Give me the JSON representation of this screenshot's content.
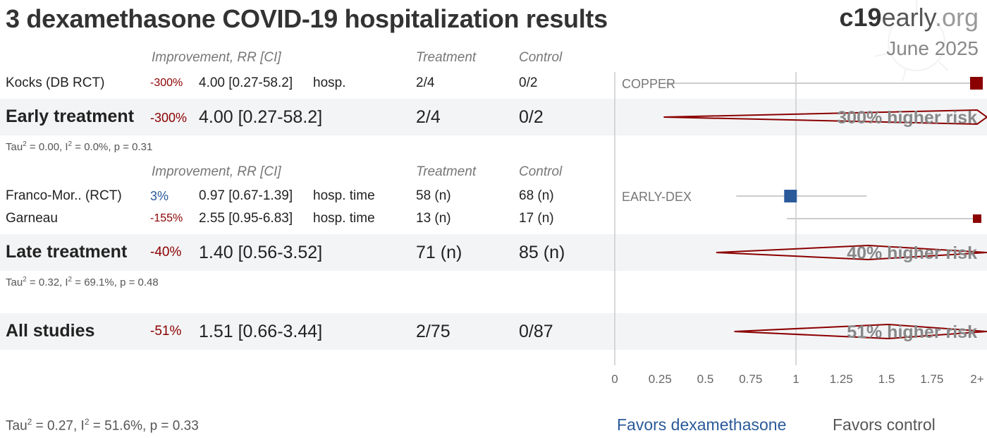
{
  "title": "3 dexamethasone COVID-19 hospitalization results",
  "brand": {
    "strong": "c19",
    "mid": "early",
    "suffix": ".org"
  },
  "date": "June 2025",
  "headers": {
    "improvement": "Improvement, RR [CI]",
    "treatment": "Treatment",
    "control": "Control"
  },
  "studies": [
    {
      "name": "Kocks (DB RCT)",
      "improvement": "-300%",
      "rr_text": "4.00 [0.27-58.2]",
      "outcome": "hosp.",
      "treatment": "2/4",
      "control": "0/2",
      "trial": "COPPER"
    },
    {
      "name": "Franco-Mor.. (RCT)",
      "improvement": "3%",
      "rr_text": "0.97 [0.67-1.39]",
      "outcome": "hosp. time",
      "treatment": "58 (n)",
      "control": "68 (n)",
      "trial": "EARLY-DEX"
    },
    {
      "name": "Garneau",
      "improvement": "-155%",
      "rr_text": "2.55 [0.95-6.83]",
      "outcome": "hosp. time",
      "treatment": "13 (n)",
      "control": "17 (n)",
      "trial": ""
    }
  ],
  "groups": [
    {
      "name": "Early treatment",
      "improvement": "-300%",
      "rr_text": "4.00 [0.27-58.2]",
      "treatment": "2/4",
      "control": "0/2",
      "effect_label": "300% higher risk",
      "stats": "= 0.00, I",
      "stats_tail": "= 0.0%, p = 0.31"
    },
    {
      "name": "Late treatment",
      "improvement": "-40%",
      "rr_text": "1.40 [0.56-3.52]",
      "treatment": "71 (n)",
      "control": "85 (n)",
      "effect_label": "40% higher risk",
      "stats": "= 0.32, I",
      "stats_tail": "= 69.1%, p = 0.48"
    },
    {
      "name": "All studies",
      "improvement": "-51%",
      "rr_text": "1.51 [0.66-3.44]",
      "treatment": "2/75",
      "control": "0/87",
      "effect_label": "51% higher risk"
    }
  ],
  "footer": {
    "stats": "= 0.27, I",
    "stats_tail": "= 51.6%, p = 0.33"
  },
  "tau_label": "Tau",
  "sq": "2",
  "i_label": "I",
  "axis_labels": [
    "0",
    "0.25",
    "0.5",
    "0.75",
    "1",
    "1.25",
    "1.5",
    "1.75",
    "2+"
  ],
  "favors": {
    "left": "Favors dexamethasone",
    "right": "Favors control"
  },
  "chart_data": {
    "type": "forest",
    "x_axis": {
      "min": 0,
      "max": 2,
      "ticks": [
        0,
        0.25,
        0.5,
        0.75,
        1,
        1.25,
        1.5,
        1.75,
        2
      ],
      "null_line": 1,
      "top_tick_label": "2+"
    },
    "studies": [
      {
        "name": "Kocks (DB RCT)",
        "rr": 4.0,
        "ci": [
          0.27,
          58.2
        ]
      },
      {
        "name": "Franco-Mor.. (RCT)",
        "rr": 0.97,
        "ci": [
          0.67,
          1.39
        ]
      },
      {
        "name": "Garneau",
        "rr": 2.55,
        "ci": [
          0.95,
          6.83
        ]
      }
    ],
    "pooled": [
      {
        "name": "Early treatment",
        "rr": 4.0,
        "ci": [
          0.27,
          58.2
        ]
      },
      {
        "name": "Late treatment",
        "rr": 1.4,
        "ci": [
          0.56,
          3.52
        ]
      },
      {
        "name": "All studies",
        "rr": 1.51,
        "ci": [
          0.66,
          3.44
        ]
      }
    ],
    "colors": {
      "harm": "#8b0000",
      "benefit": "#2a5a9a",
      "ci_line": "#cccccc",
      "axis": "#cccccc"
    }
  }
}
